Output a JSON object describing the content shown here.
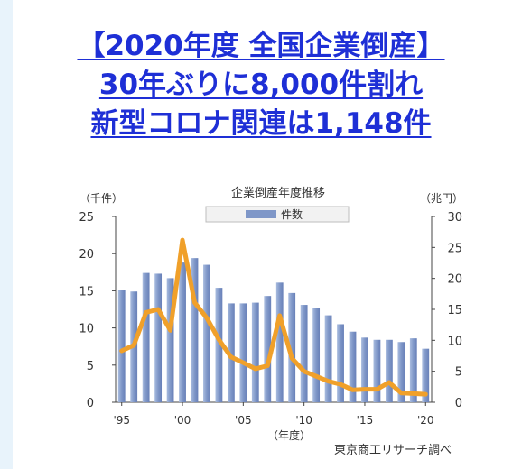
{
  "headline": {
    "line1": "【2020年度 全国企業倒産】",
    "line2": "30年ぶりに8,000件割れ",
    "line3": "新型コロナ関連は1,148件"
  },
  "colors": {
    "headline": "#1e2fd6",
    "bars": "#7f97c8",
    "line": "#f0a02a"
  },
  "chart_data": {
    "type": "bar+line",
    "title": "企業倒産年度推移",
    "left_unit": "（千件）",
    "right_unit": "（兆円）",
    "xlabel": "（年度）",
    "source": "東京商工リサーチ調べ",
    "legend": [
      {
        "label": "件数"
      }
    ],
    "legend_position": "top-center",
    "grid": false,
    "x": [
      1995,
      1996,
      1997,
      1998,
      1999,
      2000,
      2001,
      2002,
      2003,
      2004,
      2005,
      2006,
      2007,
      2008,
      2009,
      2010,
      2011,
      2012,
      2013,
      2014,
      2015,
      2016,
      2017,
      2018,
      2019,
      2020
    ],
    "x_tick_labels": [
      "'95",
      "'00",
      "'05",
      "'10",
      "'15",
      "'20"
    ],
    "x_tick_values": [
      1995,
      2000,
      2005,
      2010,
      2015,
      2020
    ],
    "y_left_ticks": [
      "0",
      "5",
      "10",
      "15",
      "20",
      "25"
    ],
    "y_right_ticks": [
      "0",
      "5",
      "10",
      "15",
      "20",
      "25",
      "30"
    ],
    "ylim_left": [
      0,
      25
    ],
    "ylim_right": [
      0,
      30
    ],
    "series": [
      {
        "name": "件数",
        "kind": "bar",
        "axis": "left",
        "values": [
          15.1,
          14.9,
          17.4,
          17.3,
          16.7,
          18.8,
          19.4,
          18.5,
          15.4,
          13.3,
          13.3,
          13.4,
          14.3,
          16.1,
          14.7,
          13.1,
          12.7,
          11.7,
          10.5,
          9.5,
          8.7,
          8.4,
          8.4,
          8.1,
          8.6,
          7.2
        ]
      },
      {
        "kind": "line",
        "axis": "right",
        "values": [
          8.3,
          9.2,
          14.5,
          15.0,
          11.6,
          26.2,
          16.1,
          13.6,
          10.1,
          7.3,
          6.4,
          5.4,
          5.9,
          14.0,
          7.1,
          5.0,
          4.2,
          3.4,
          2.9,
          2.0,
          2.1,
          2.1,
          3.2,
          1.5,
          1.4,
          1.3
        ]
      }
    ]
  }
}
